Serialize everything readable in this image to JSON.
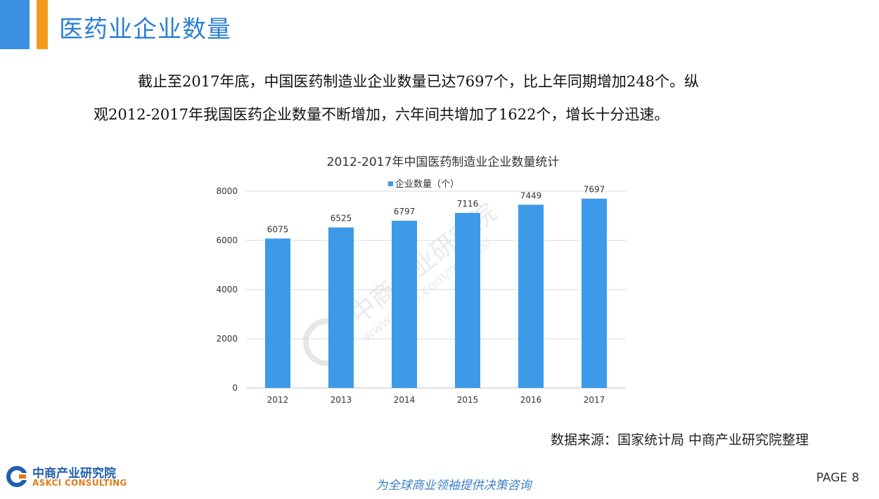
{
  "header": {
    "title": "医药业企业数量",
    "accent_colors": [
      "#3a8fe0",
      "#f39a1e"
    ]
  },
  "body": {
    "paragraph_line1": "截止至2017年底，中国医药制造业企业数量已达7697个，比上年同期增加248个。纵",
    "paragraph_line2": "观2012-2017年我国医药企业数量不断增加，六年间共增加了1622个，增长十分迅速。"
  },
  "chart_data": {
    "type": "bar",
    "title": "2012-2017年中国医药制造业企业数量统计",
    "categories": [
      "2012",
      "2013",
      "2014",
      "2015",
      "2016",
      "2017"
    ],
    "series": [
      {
        "name": "企业数量（个）",
        "values": [
          6075,
          6525,
          6797,
          7116,
          7449,
          7697
        ],
        "color": "#3d9ae8"
      }
    ],
    "y_ticks": [
      "0",
      "2000",
      "4000",
      "6000",
      "8000"
    ],
    "ylim": [
      0,
      8000
    ],
    "grid": true,
    "legend_position": "top",
    "data_labels": true,
    "xlabel": "",
    "ylabel": ""
  },
  "watermark": {
    "brand": "中商产业研究院",
    "url": "www.askci.com/reports/"
  },
  "source": "数据来源：国家统计局 中商产业研究院整理",
  "footer": {
    "logo_cn": "中商产业研究院",
    "logo_en": "ASKCI CONSULTING",
    "slogan": "为全球商业领袖提供决策咨询",
    "page_label": "PAGE",
    "page_number": "8"
  }
}
